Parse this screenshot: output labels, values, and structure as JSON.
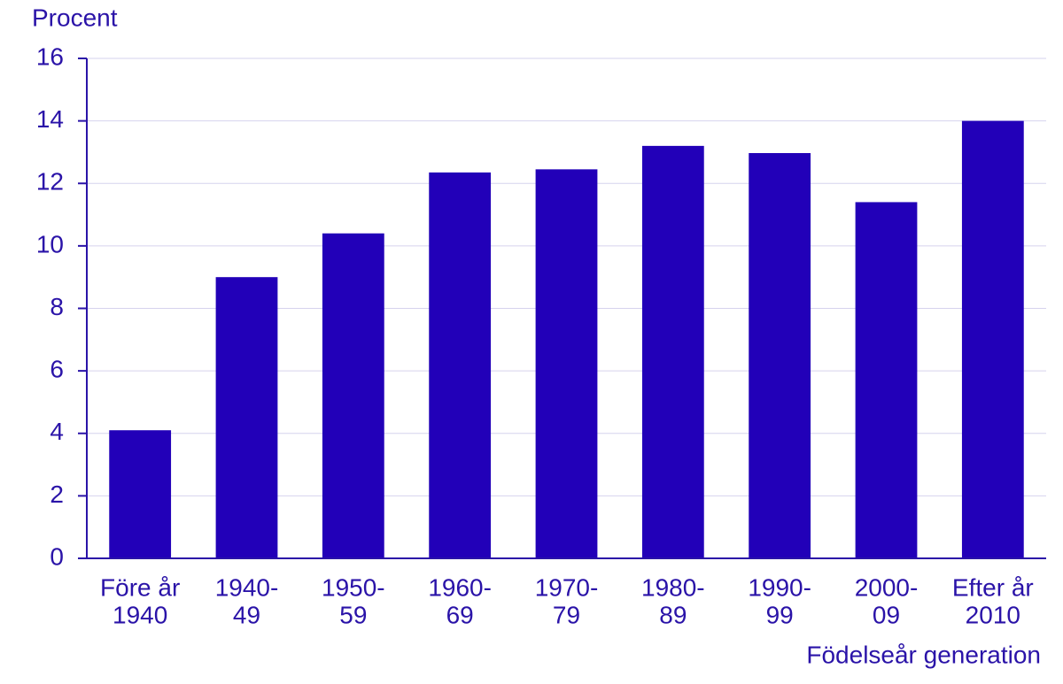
{
  "chart_data": {
    "type": "bar",
    "y_label": "Procent",
    "x_label": "Födelseår generation",
    "categories": [
      [
        "Före år",
        "1940"
      ],
      [
        "1940-",
        "49"
      ],
      [
        "1950-",
        "59"
      ],
      [
        "1960-",
        "69"
      ],
      [
        "1970-",
        "79"
      ],
      [
        "1980-",
        "89"
      ],
      [
        "1990-",
        "99"
      ],
      [
        "2000-",
        "09"
      ],
      [
        "Efter år",
        "2010"
      ]
    ],
    "values": [
      4.1,
      9.0,
      10.4,
      12.35,
      12.45,
      13.2,
      12.97,
      11.4,
      14.0
    ],
    "color": "#2200b8",
    "ylim": [
      0,
      16
    ],
    "yticks": [
      0,
      2,
      4,
      6,
      8,
      10,
      12,
      14,
      16
    ],
    "grid": true
  }
}
